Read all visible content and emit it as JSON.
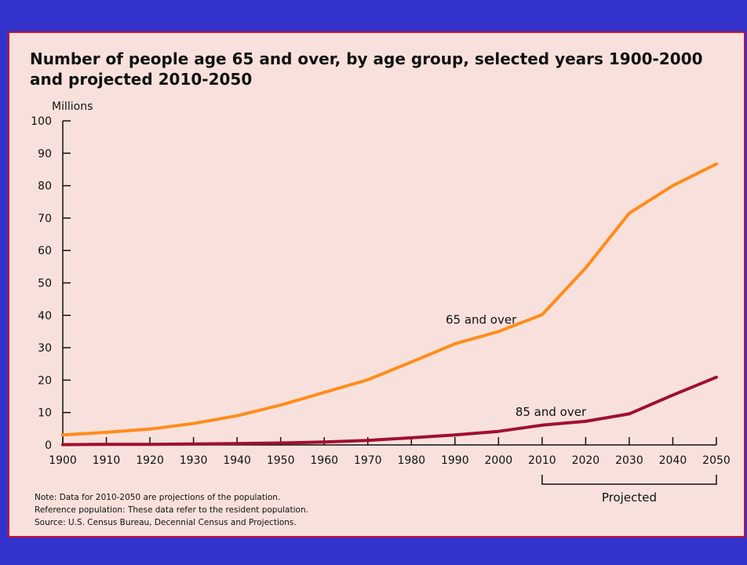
{
  "colors": {
    "background": "#3333cc",
    "panel": "#f8e1dc",
    "border": "#c8102e",
    "series_65": "#ff8c1a",
    "series_85": "#a0102e"
  },
  "chart_data": {
    "type": "line",
    "title": "Number of people age 65 and over, by age group, selected years 1900-2000 and projected 2010-2050",
    "ylabel": "Millions",
    "xlabel": "",
    "ylim": [
      0,
      100
    ],
    "yticks": [
      0,
      10,
      20,
      30,
      40,
      50,
      60,
      70,
      80,
      90,
      100
    ],
    "x": [
      1900,
      1910,
      1920,
      1930,
      1940,
      1950,
      1960,
      1970,
      1980,
      1990,
      2000,
      2010,
      2020,
      2030,
      2040,
      2050
    ],
    "series": [
      {
        "name": "65 and over",
        "values": [
          3.1,
          3.9,
          4.9,
          6.6,
          9.0,
          12.3,
          16.2,
          20.1,
          25.6,
          31.2,
          35.0,
          40.2,
          54.6,
          71.5,
          80.0,
          86.7
        ]
      },
      {
        "name": "85 and over",
        "values": [
          0.1,
          0.2,
          0.2,
          0.3,
          0.4,
          0.6,
          0.9,
          1.4,
          2.2,
          3.1,
          4.2,
          6.1,
          7.3,
          9.6,
          15.4,
          20.9
        ]
      }
    ],
    "projected_label": "Projected",
    "projected_range": [
      2010,
      2050
    ]
  },
  "notes": [
    "Note: Data for 2010-2050 are projections of the population.",
    "Reference population: These data refer to the resident population.",
    "Source: U.S. Census Bureau, Decennial Census and Projections."
  ]
}
